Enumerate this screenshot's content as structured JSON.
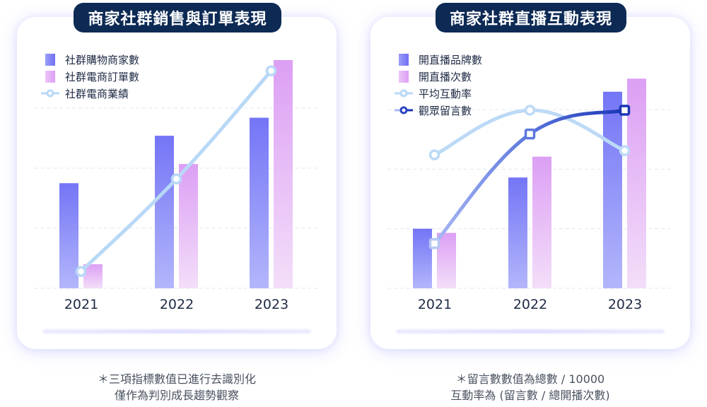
{
  "left_panel": {
    "title": "商家社群銷售與訂單表現",
    "legend": [
      {
        "label": "社群購物商家數",
        "kind": "bar",
        "color": "#7b7cf6"
      },
      {
        "label": "社群電商訂單數",
        "kind": "bar",
        "color": "#e2a8f4"
      },
      {
        "label": "社群電商業績",
        "kind": "line",
        "color": "#b8d8f6"
      }
    ],
    "years": [
      "2021",
      "2022",
      "2023"
    ],
    "note_line1": "＊三項指標數值已進行去識別化",
    "note_line2": "僅作為判別成長趨勢觀察"
  },
  "right_panel": {
    "title": "商家社群直播互動表現",
    "legend": [
      {
        "label": "開直播品牌數",
        "kind": "bar",
        "color": "#7b7cf6"
      },
      {
        "label": "開直播次數",
        "kind": "bar",
        "color": "#e2a8f4"
      },
      {
        "label": "平均互動率",
        "kind": "line",
        "color": "#b8d8f6"
      },
      {
        "label": "觀眾留言數",
        "kind": "line",
        "color": "#1f3fb8"
      }
    ],
    "years": [
      "2021",
      "2022",
      "2023"
    ],
    "note_line1": "＊留言數數值為總數 / 10000",
    "note_line2": "互動率為 (留言數 / 總開播次數)"
  },
  "chart_data": [
    {
      "type": "bar",
      "title": "商家社群銷售與訂單表現",
      "categories": [
        "2021",
        "2022",
        "2023"
      ],
      "series": [
        {
          "name": "社群購物商家數",
          "type": "bar",
          "values": [
            1.75,
            2.54,
            2.84
          ]
        },
        {
          "name": "社群電商訂單數",
          "type": "bar",
          "values": [
            0.4,
            2.07,
            3.8
          ]
        },
        {
          "name": "社群電商業績",
          "type": "line",
          "values": [
            0.28,
            1.82,
            3.62
          ]
        }
      ],
      "xlabel": "",
      "ylabel": "",
      "ylim": [
        0,
        4
      ],
      "y_axis_labels_shown": false,
      "grid": true,
      "legend_position": "top-left",
      "note": "values de-identified; relative units estimated from gridlines (1 unit = 1 gridline step)"
    },
    {
      "type": "bar",
      "title": "商家社群直播互動表現",
      "categories": [
        "2021",
        "2022",
        "2023"
      ],
      "series": [
        {
          "name": "開直播品牌數",
          "type": "bar",
          "values": [
            1.0,
            1.86,
            3.3
          ]
        },
        {
          "name": "開直播次數",
          "type": "bar",
          "values": [
            0.93,
            2.21,
            3.52
          ]
        },
        {
          "name": "平均互動率",
          "type": "line",
          "values": [
            2.24,
            2.99,
            2.31
          ]
        },
        {
          "name": "觀眾留言數",
          "type": "line",
          "values": [
            0.75,
            2.59,
            2.99
          ]
        }
      ],
      "xlabel": "",
      "ylabel": "",
      "ylim": [
        0,
        4
      ],
      "y_axis_labels_shown": false,
      "grid": true,
      "legend_position": "top-left",
      "note": "relative units estimated from gridlines (1 unit = 1 gridline step)"
    }
  ]
}
